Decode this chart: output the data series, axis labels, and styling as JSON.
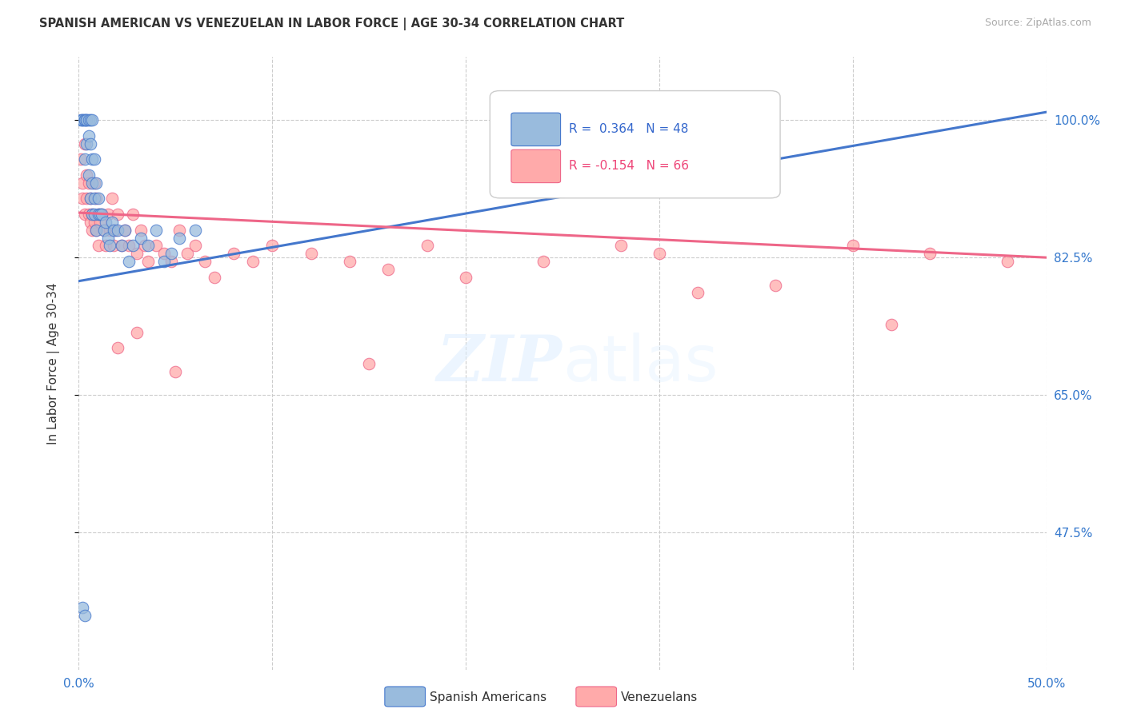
{
  "title": "SPANISH AMERICAN VS VENEZUELAN IN LABOR FORCE | AGE 30-34 CORRELATION CHART",
  "source": "Source: ZipAtlas.com",
  "ylabel": "In Labor Force | Age 30-34",
  "x_min": 0.0,
  "x_max": 0.5,
  "y_min": 0.3,
  "y_max": 1.08,
  "x_ticks": [
    0.0,
    0.1,
    0.2,
    0.3,
    0.4,
    0.5
  ],
  "x_tick_labels": [
    "0.0%",
    "",
    "",
    "",
    "",
    "50.0%"
  ],
  "y_ticks": [
    0.475,
    0.65,
    0.825,
    1.0
  ],
  "y_tick_labels": [
    "47.5%",
    "65.0%",
    "82.5%",
    "100.0%"
  ],
  "grid_color": "#cccccc",
  "background_color": "#ffffff",
  "legend_r1": "R =  0.364",
  "legend_n1": "N = 48",
  "legend_r2": "R = -0.154",
  "legend_n2": "N = 66",
  "blue_color": "#99bbdd",
  "pink_color": "#ffaaaa",
  "blue_line_color": "#4477cc",
  "pink_line_color": "#ee6688",
  "legend_label_blue": "Spanish Americans",
  "legend_label_pink": "Venezuelans",
  "blue_line_x0": 0.0,
  "blue_line_y0": 0.795,
  "blue_line_x1": 0.5,
  "blue_line_y1": 1.01,
  "pink_line_x0": 0.0,
  "pink_line_y0": 0.882,
  "pink_line_x1": 0.5,
  "pink_line_y1": 0.825,
  "spanish_x": [
    0.001,
    0.002,
    0.002,
    0.003,
    0.003,
    0.003,
    0.004,
    0.004,
    0.004,
    0.005,
    0.005,
    0.005,
    0.006,
    0.006,
    0.006,
    0.007,
    0.007,
    0.007,
    0.007,
    0.008,
    0.008,
    0.008,
    0.009,
    0.009,
    0.01,
    0.01,
    0.011,
    0.012,
    0.013,
    0.014,
    0.015,
    0.016,
    0.017,
    0.018,
    0.02,
    0.022,
    0.024,
    0.026,
    0.028,
    0.032,
    0.036,
    0.04,
    0.044,
    0.048,
    0.052,
    0.06,
    0.002,
    0.003
  ],
  "spanish_y": [
    1.0,
    1.0,
    1.0,
    1.0,
    0.95,
    1.0,
    1.0,
    0.97,
    1.0,
    1.0,
    0.98,
    0.93,
    0.97,
    0.9,
    1.0,
    0.92,
    0.95,
    0.88,
    1.0,
    0.9,
    0.95,
    0.88,
    0.92,
    0.86,
    0.88,
    0.9,
    0.88,
    0.88,
    0.86,
    0.87,
    0.85,
    0.84,
    0.87,
    0.86,
    0.86,
    0.84,
    0.86,
    0.82,
    0.84,
    0.85,
    0.84,
    0.86,
    0.82,
    0.83,
    0.85,
    0.86,
    0.38,
    0.37
  ],
  "venezuelan_x": [
    0.001,
    0.002,
    0.002,
    0.003,
    0.003,
    0.004,
    0.004,
    0.005,
    0.005,
    0.006,
    0.006,
    0.007,
    0.007,
    0.008,
    0.008,
    0.009,
    0.009,
    0.01,
    0.01,
    0.011,
    0.012,
    0.013,
    0.014,
    0.015,
    0.016,
    0.017,
    0.018,
    0.019,
    0.02,
    0.022,
    0.024,
    0.026,
    0.028,
    0.03,
    0.032,
    0.034,
    0.036,
    0.04,
    0.044,
    0.048,
    0.052,
    0.056,
    0.06,
    0.065,
    0.07,
    0.08,
    0.09,
    0.1,
    0.12,
    0.14,
    0.16,
    0.18,
    0.2,
    0.24,
    0.28,
    0.32,
    0.36,
    0.4,
    0.44,
    0.48,
    0.02,
    0.03,
    0.05,
    0.15,
    0.3,
    0.42
  ],
  "venezuelan_y": [
    0.95,
    0.92,
    0.9,
    0.88,
    0.97,
    0.9,
    0.93,
    0.88,
    0.92,
    0.87,
    0.9,
    0.88,
    0.86,
    0.92,
    0.87,
    0.9,
    0.86,
    0.88,
    0.84,
    0.87,
    0.88,
    0.86,
    0.84,
    0.88,
    0.86,
    0.9,
    0.84,
    0.86,
    0.88,
    0.84,
    0.86,
    0.84,
    0.88,
    0.83,
    0.86,
    0.84,
    0.82,
    0.84,
    0.83,
    0.82,
    0.86,
    0.83,
    0.84,
    0.82,
    0.8,
    0.83,
    0.82,
    0.84,
    0.83,
    0.82,
    0.81,
    0.84,
    0.8,
    0.82,
    0.84,
    0.78,
    0.79,
    0.84,
    0.83,
    0.82,
    0.71,
    0.73,
    0.68,
    0.69,
    0.83,
    0.74
  ]
}
